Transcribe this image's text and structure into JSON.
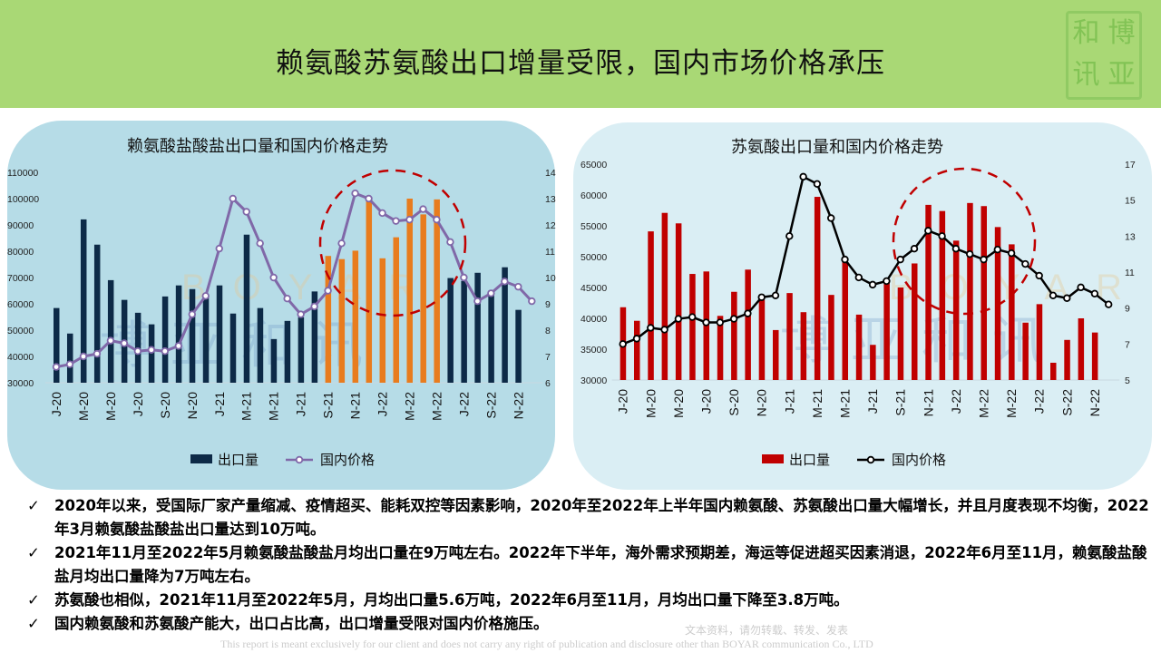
{
  "header": {
    "title": "赖氨酸苏氨酸出口增量受限，国内市场价格承压",
    "seal_text": [
      "博",
      "和",
      "亚",
      "讯"
    ]
  },
  "watermark": {
    "latin": "BOYAR",
    "cjk": "博亚和讯"
  },
  "colors": {
    "header_green": "#a9d875",
    "left_bar": "#0d2a47",
    "left_bar_highlight": "#e87c1e",
    "left_line": "#8068a8",
    "right_bar": "#c00000",
    "right_line": "#000000",
    "circle": "#c00000"
  },
  "chart_data": [
    {
      "type": "bar+line",
      "title": "赖氨酸盐酸盐出口量和国内价格走势",
      "x_tick_labels": [
        "J-20",
        "M-20",
        "M-20",
        "J-20",
        "S-20",
        "N-20",
        "J-21",
        "M-21",
        "M-21",
        "J-21",
        "S-21",
        "N-21",
        "J-22",
        "M-22",
        "M-22",
        "J-22",
        "S-22",
        "N-22"
      ],
      "months": [
        "2020-01",
        "2020-02",
        "2020-03",
        "2020-04",
        "2020-05",
        "2020-06",
        "2020-07",
        "2020-08",
        "2020-09",
        "2020-10",
        "2020-11",
        "2020-12",
        "2021-01",
        "2021-02",
        "2021-03",
        "2021-04",
        "2021-05",
        "2021-06",
        "2021-07",
        "2021-08",
        "2021-09",
        "2021-10",
        "2021-11",
        "2021-12",
        "2022-01",
        "2022-02",
        "2022-03",
        "2022-04",
        "2022-05",
        "2022-06",
        "2022-07",
        "2022-08",
        "2022-09",
        "2022-10",
        "2022-11",
        "2022-12"
      ],
      "y_left": {
        "range": [
          30000,
          110000
        ],
        "ticks": [
          "30000",
          "40000",
          "50000",
          "60000",
          "70000",
          "80000",
          "90000",
          "100000",
          "110000"
        ]
      },
      "y_right": {
        "range": [
          6,
          14
        ],
        "ticks": [
          "6",
          "7",
          "8",
          "9",
          "10",
          "11",
          "12",
          "13",
          "14"
        ]
      },
      "highlight_months": [
        "2021-09",
        "2022-05"
      ],
      "legend_placement": "bottom",
      "series": [
        {
          "name": "出口量",
          "kind": "bar",
          "axis": "left",
          "values": [
            58400,
            48700,
            92100,
            82500,
            69000,
            61500,
            56600,
            52200,
            62800,
            67000,
            65600,
            63000,
            67000,
            56300,
            86300,
            58400,
            46600,
            53500,
            54900,
            64700,
            78200,
            77000,
            80200,
            99700,
            77300,
            85300,
            100000,
            94000,
            99700,
            69800,
            68700,
            71800,
            64100,
            73900,
            57700
          ]
        },
        {
          "name": "国内价格",
          "kind": "line",
          "axis": "right",
          "values": [
            6.6,
            6.7,
            7.0,
            7.1,
            7.6,
            7.5,
            7.2,
            7.25,
            7.2,
            7.4,
            8.6,
            9.3,
            11.1,
            13.0,
            12.5,
            11.3,
            10.0,
            9.2,
            8.6,
            8.9,
            9.5,
            11.3,
            13.2,
            13.0,
            12.45,
            12.15,
            12.2,
            12.6,
            12.2,
            11.35,
            10.0,
            9.1,
            9.4,
            9.85,
            9.65,
            9.1
          ]
        }
      ]
    },
    {
      "type": "bar+line",
      "title": "苏氨酸出口量和国内价格走势",
      "x_tick_labels": [
        "J-20",
        "M-20",
        "M-20",
        "J-20",
        "S-20",
        "N-20",
        "J-21",
        "M-21",
        "M-21",
        "J-21",
        "S-21",
        "N-21",
        "J-22",
        "M-22",
        "M-22",
        "J-22",
        "S-22",
        "N-22"
      ],
      "y_left": {
        "range": [
          30000,
          65000
        ],
        "ticks": [
          "30000",
          "35000",
          "40000",
          "45000",
          "50000",
          "55000",
          "60000",
          "65000"
        ]
      },
      "y_right": {
        "range": [
          5,
          17
        ],
        "ticks": [
          "5",
          "7",
          "9",
          "11",
          "13",
          "15",
          "17"
        ]
      },
      "legend_placement": "bottom",
      "series": [
        {
          "name": "出口量",
          "kind": "bar",
          "axis": "left",
          "values": [
            41800,
            39600,
            54100,
            57100,
            55400,
            47200,
            47600,
            40400,
            44300,
            47900,
            43000,
            38100,
            44100,
            41000,
            59700,
            43800,
            49200,
            40600,
            35700,
            45800,
            45000,
            48900,
            58400,
            57400,
            52600,
            58700,
            58200,
            54800,
            52000,
            39300,
            42300,
            32800,
            36500,
            40000,
            37700
          ]
        },
        {
          "name": "国内价格",
          "kind": "line",
          "axis": "right",
          "values": [
            7.0,
            7.3,
            7.9,
            7.8,
            8.4,
            8.5,
            8.2,
            8.2,
            8.4,
            8.7,
            9.6,
            9.7,
            13.0,
            16.3,
            15.9,
            14.0,
            11.7,
            10.7,
            10.3,
            10.5,
            11.7,
            12.3,
            13.3,
            13.0,
            12.3,
            12.0,
            11.7,
            12.25,
            12.05,
            11.45,
            10.8,
            9.7,
            9.55,
            10.15,
            9.8,
            9.2
          ]
        }
      ]
    }
  ],
  "bullets": [
    {
      "icon": "check-icon",
      "mark": "✓",
      "text": "2020年以来，受国际厂家产量缩减、疫情超买、能耗双控等因素影响，2020年至2022年上半年国内赖氨酸、苏氨酸出口量大幅增长，并且月度表现不均衡，2022年3月赖氨酸盐酸盐出口量达到10万吨。"
    },
    {
      "icon": "check-icon",
      "mark": "✓",
      "text": "2021年11月至2022年5月赖氨酸盐酸盐月均出口量在9万吨左右。2022年下半年，海外需求预期差，海运等促进超买因素消退，2022年6月至11月，赖氨酸盐酸盐月均出口量降为7万吨左右。"
    },
    {
      "icon": "check-icon",
      "mark": "✓",
      "text": "苏氨酸也相似，2021年11月至2022年5月，月均出口量5.6万吨，2022年6月至11月，月均出口量下降至3.8万吨。"
    },
    {
      "icon": "check-icon",
      "mark": "✓",
      "text": "国内赖氨酸和苏氨酸产能大，出口占比高，出口增量受限对国内价格施压。"
    }
  ],
  "disclaimer": {
    "cn": "文本资料，请勿转载、转发、发表",
    "en": "This report is meant exclusively for our client and does not carry any right of publication and disclosure other than BOYAR communication Co., LTD"
  }
}
